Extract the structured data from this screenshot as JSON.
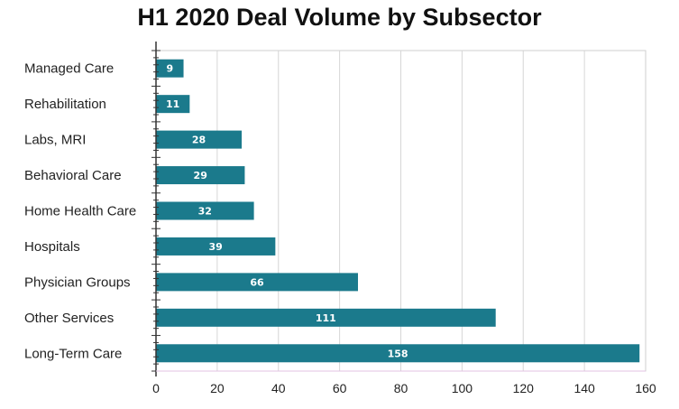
{
  "chart_data": {
    "type": "bar",
    "orientation": "horizontal",
    "title": "H1 2020 Deal Volume by Subsector",
    "categories": [
      "Managed Care",
      "Rehabilitation",
      "Labs, MRI",
      "Behavioral Care",
      "Home Health Care",
      "Hospitals",
      "Physician Groups",
      "Other Services",
      "Long-Term Care"
    ],
    "values": [
      9,
      11,
      28,
      29,
      32,
      39,
      66,
      111,
      158
    ],
    "xlim": [
      0,
      160
    ],
    "xticks": [
      0,
      20,
      40,
      60,
      80,
      100,
      120,
      140,
      160
    ],
    "grid": true,
    "data_labels": true,
    "bar_color": "#1b7a8c",
    "legend": "none"
  }
}
